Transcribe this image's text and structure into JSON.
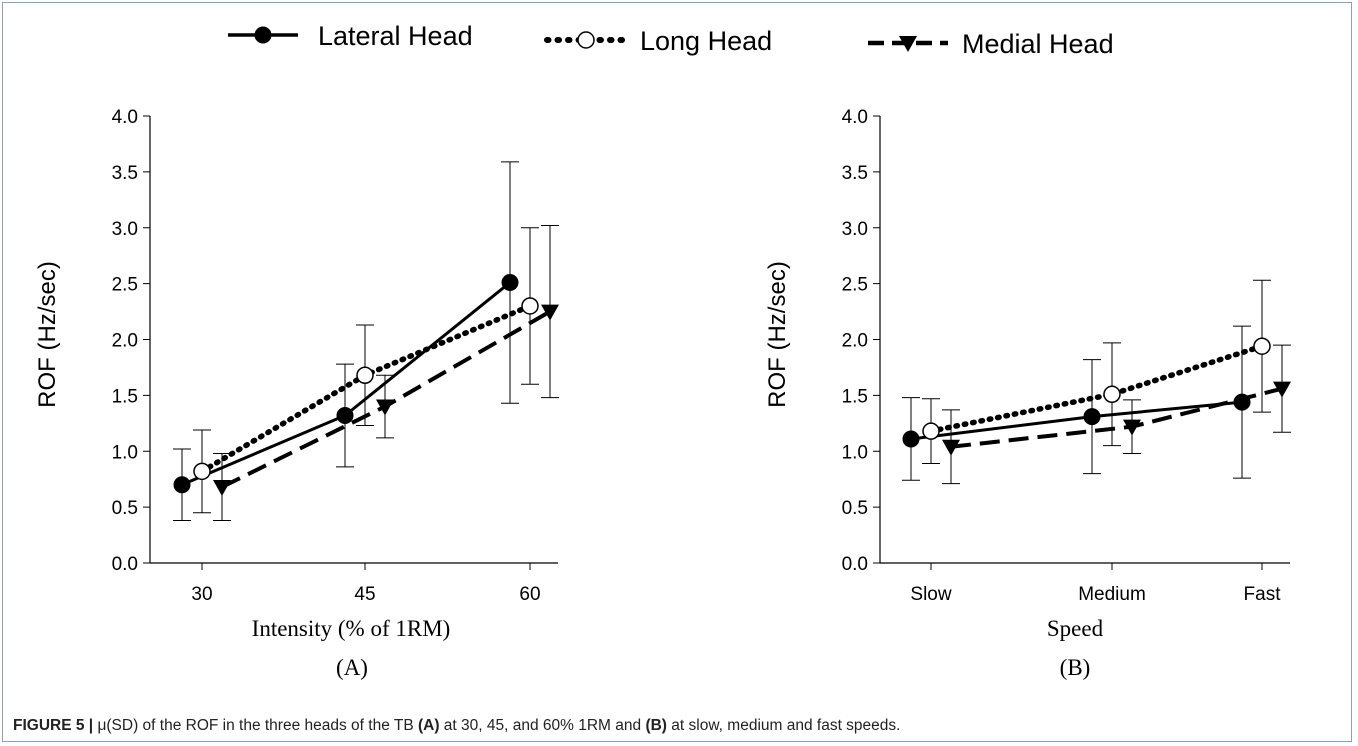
{
  "legend": {
    "entries": [
      {
        "label": "Lateral Head",
        "marker": "filled-circle",
        "line": "solid"
      },
      {
        "label": "Long Head",
        "marker": "open-circle",
        "line": "dotted"
      },
      {
        "label": "Medial Head",
        "marker": "filled-triangle-down",
        "line": "dashed"
      }
    ]
  },
  "caption": {
    "figure_label": "FIGURE 5 |",
    "text_1": " μ(SD) of the ROF in the three heads of the TB ",
    "panel_a": "(A)",
    "text_2": " at 30, 45, and 60% 1RM and ",
    "panel_b": "(B)",
    "text_3": " at slow, medium and fast speeds."
  },
  "chart_data": [
    {
      "type": "line",
      "panel_label": "(A)",
      "xlabel": "Intensity (% of 1RM)",
      "ylabel": "ROF (Hz/sec)",
      "categories": [
        "30",
        "45",
        "60"
      ],
      "ylim": [
        0.0,
        4.0
      ],
      "yticks": [
        "0.0",
        "0.5",
        "1.0",
        "1.5",
        "2.0",
        "2.5",
        "3.0",
        "3.5",
        "4.0"
      ],
      "grid": false,
      "series": [
        {
          "name": "Lateral Head",
          "values": [
            0.7,
            1.32,
            2.51
          ],
          "sd": [
            0.32,
            0.46,
            1.08
          ]
        },
        {
          "name": "Long Head",
          "values": [
            0.82,
            1.68,
            2.3
          ],
          "sd": [
            0.37,
            0.45,
            0.7
          ]
        },
        {
          "name": "Medial Head",
          "values": [
            0.68,
            1.4,
            2.25
          ],
          "sd": [
            0.3,
            0.28,
            0.77
          ]
        }
      ]
    },
    {
      "type": "line",
      "panel_label": "(B)",
      "xlabel": "Speed",
      "ylabel": "ROF (Hz/sec)",
      "categories": [
        "Slow",
        "Medium",
        "Fast"
      ],
      "ylim": [
        0.0,
        4.0
      ],
      "yticks": [
        "0.0",
        "0.5",
        "1.0",
        "1.5",
        "2.0",
        "2.5",
        "3.0",
        "3.5",
        "4.0"
      ],
      "grid": false,
      "series": [
        {
          "name": "Lateral Head",
          "values": [
            1.11,
            1.31,
            1.44
          ],
          "sd": [
            0.37,
            0.51,
            0.68
          ]
        },
        {
          "name": "Long Head",
          "values": [
            1.18,
            1.51,
            1.94
          ],
          "sd": [
            0.29,
            0.46,
            0.59
          ]
        },
        {
          "name": "Medial Head",
          "values": [
            1.04,
            1.22,
            1.56
          ],
          "sd": [
            0.33,
            0.24,
            0.39
          ]
        }
      ]
    }
  ]
}
